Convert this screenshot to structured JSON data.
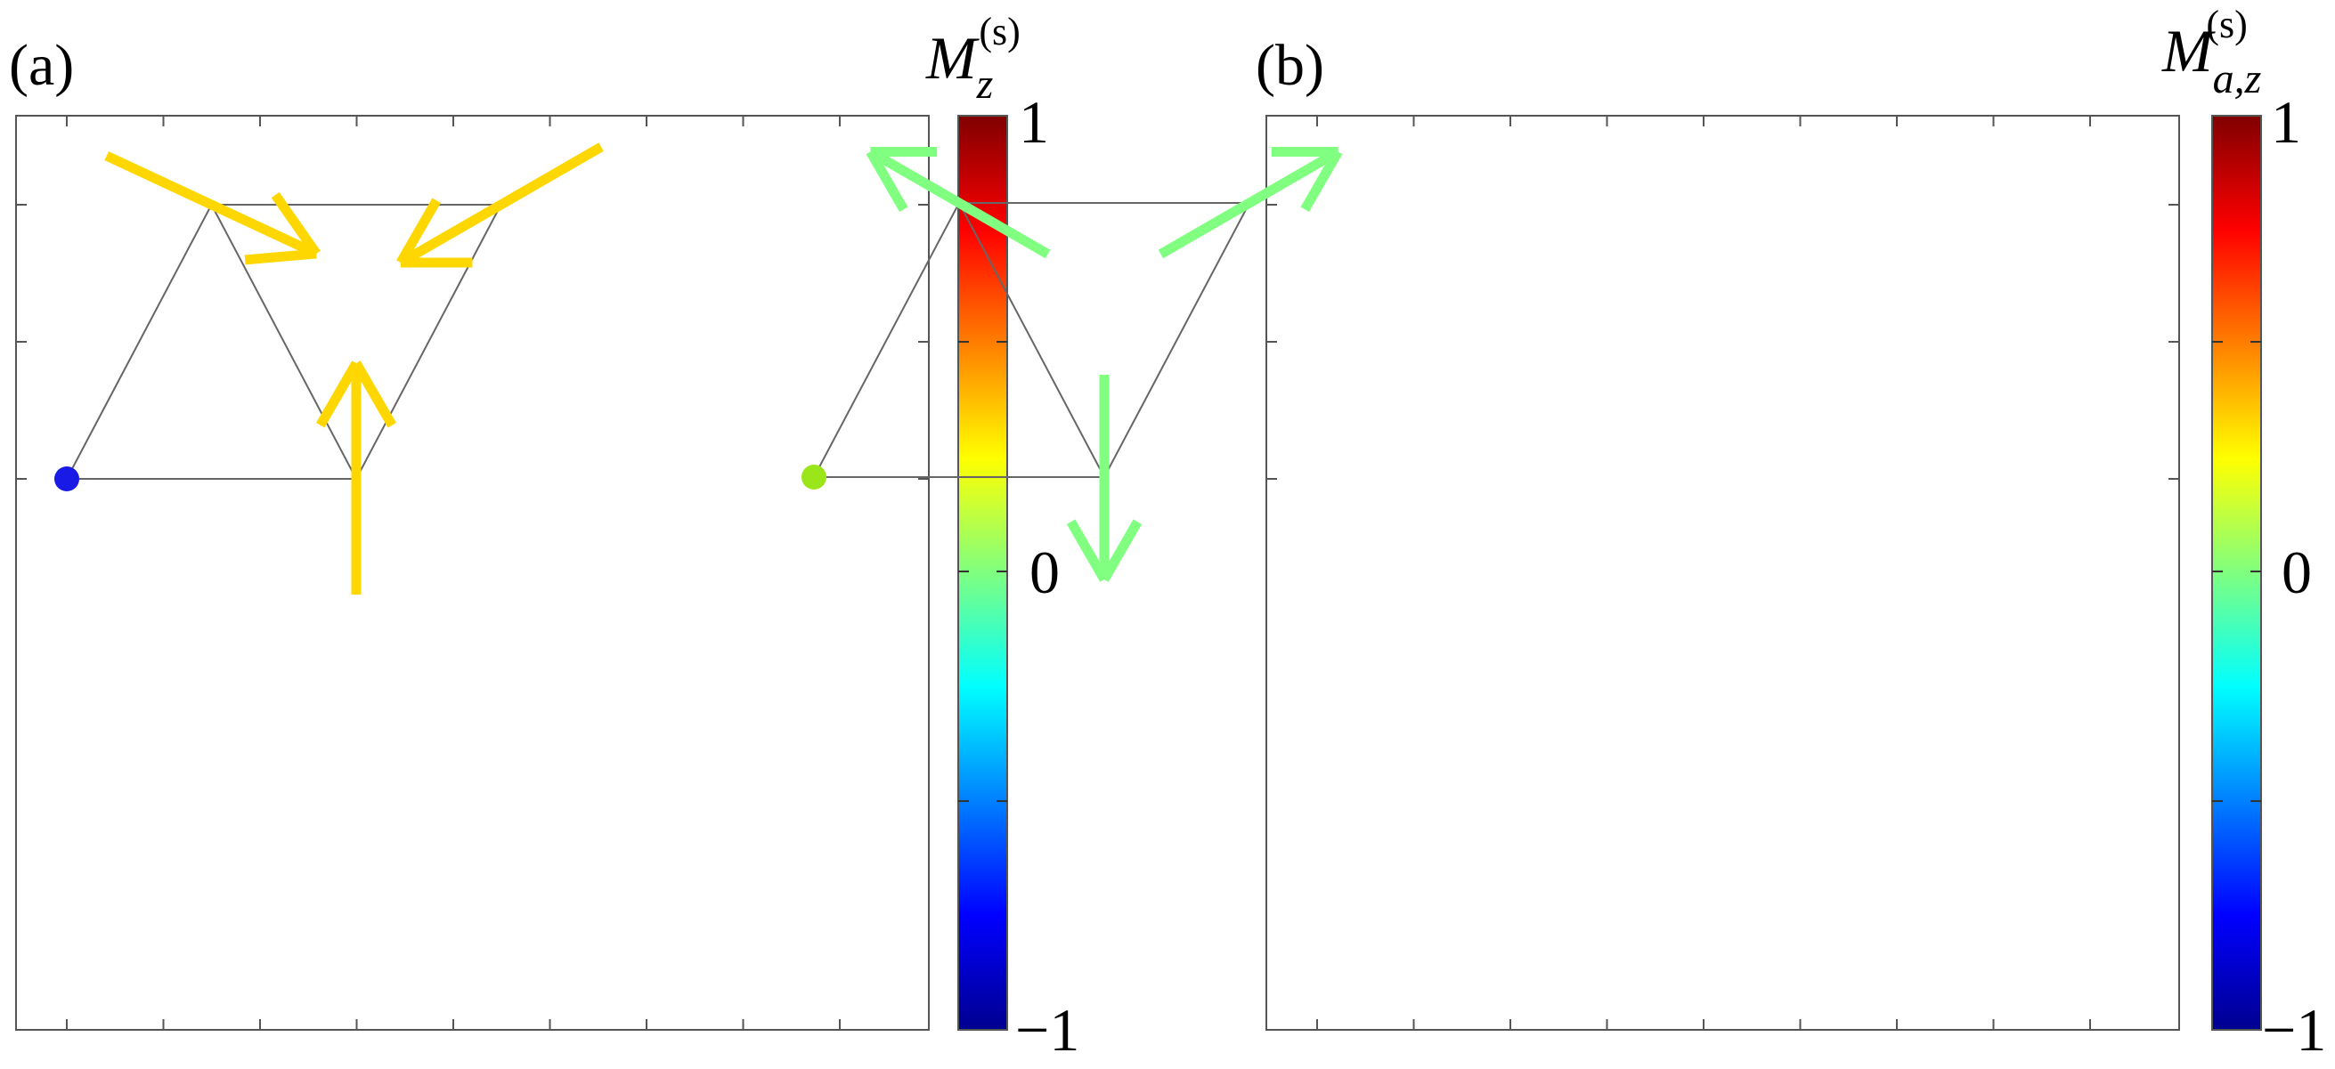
{
  "figure": {
    "panels": [
      {
        "label": "(a)",
        "colorbar": {
          "title_main": "M",
          "title_sub": "z",
          "title_sup": "(s)",
          "max_label": "1",
          "mid_label": "0",
          "min_label": "−1",
          "range": [
            -1,
            1
          ]
        }
      },
      {
        "label": "(b)",
        "colorbar": {
          "title_main": "M",
          "title_sub": "a,z",
          "title_sup": "(s)",
          "max_label": "1",
          "mid_label": "0",
          "min_label": "−1",
          "range": [
            -1,
            1
          ]
        }
      }
    ]
  },
  "chart_data": [
    {
      "type": "vector-field",
      "title": "(a)",
      "colorbar_label": "M_z^(s)",
      "colorbar_range": [
        -1,
        1
      ],
      "lattice_sites": [
        [
          0,
          0
        ],
        [
          1,
          0
        ],
        [
          0.5,
          0.866
        ],
        [
          1.5,
          0.866
        ]
      ],
      "lattice_bonds": [
        [
          0,
          1
        ],
        [
          0,
          2
        ],
        [
          2,
          3
        ],
        [
          2,
          1
        ],
        [
          1,
          3
        ]
      ],
      "dots": [
        {
          "site": 0,
          "value": -0.9,
          "color": "#1a1ae6"
        }
      ],
      "arrows": [
        {
          "site": 2,
          "angle_deg": -25,
          "value": 0.35,
          "color": "#ffd700"
        },
        {
          "site": 3,
          "angle_deg": 210,
          "value": 0.35,
          "color": "#ffd700"
        },
        {
          "site": 1,
          "angle_deg": 90,
          "value": 0.35,
          "color": "#ffd700"
        }
      ]
    },
    {
      "type": "vector-field",
      "title": "(b)",
      "colorbar_label": "M_{a,z}^(s)",
      "colorbar_range": [
        -1,
        1
      ],
      "lattice_sites": [
        [
          0,
          0
        ],
        [
          1,
          0
        ],
        [
          0.5,
          0.866
        ],
        [
          1.5,
          0.866
        ]
      ],
      "lattice_bonds": [
        [
          0,
          1
        ],
        [
          0,
          2
        ],
        [
          2,
          3
        ],
        [
          2,
          1
        ],
        [
          1,
          3
        ]
      ],
      "dots": [
        {
          "site": 0,
          "value": 0.2,
          "color": "#9be61a"
        }
      ],
      "arrows": [
        {
          "site": 2,
          "angle_deg": 150,
          "value": 0.05,
          "color": "#80ff80"
        },
        {
          "site": 3,
          "angle_deg": 30,
          "value": 0.05,
          "color": "#80ff80"
        },
        {
          "site": 1,
          "angle_deg": -90,
          "value": 0.05,
          "color": "#80ff80"
        }
      ]
    }
  ]
}
